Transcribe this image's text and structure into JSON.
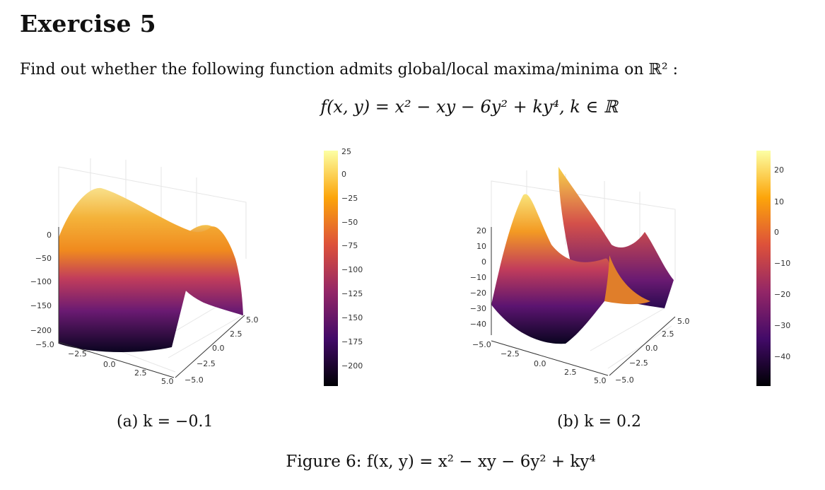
{
  "heading": "Exercise 5",
  "prompt": "Find out whether the following function admits global/local maxima/minima on ℝ² :",
  "formula": "f(x, y) = x² − xy − 6y² + ky⁴,    k ∈ ℝ",
  "figure_caption": "Figure 6:  f(x, y) = x² − xy − 6y² + ky⁴",
  "chart_data": [
    {
      "type": "surface",
      "caption": "(a) k = −0.1",
      "k": -0.1,
      "z_ticks": [
        "0",
        "−50",
        "−100",
        "−150",
        "−200"
      ],
      "x_ticks": [
        "−5.0",
        "−2.5",
        "0.0",
        "2.5",
        "5.0"
      ],
      "y_ticks": [
        "5.0",
        "2.5",
        "0.0",
        "−2.5",
        "−5.0"
      ],
      "colorbar_ticks": [
        "25",
        "0",
        "−25",
        "−50",
        "−75",
        "−100",
        "−125",
        "−150",
        "−175",
        "−200"
      ],
      "colormap": [
        "#000004",
        "#420a68",
        "#932667",
        "#dd513a",
        "#fca50a",
        "#fcffa4"
      ]
    },
    {
      "type": "surface",
      "caption": "(b) k = 0.2",
      "k": 0.2,
      "z_ticks": [
        "20",
        "10",
        "0",
        "−10",
        "−20",
        "−30",
        "−40"
      ],
      "x_ticks": [
        "−5.0",
        "−2.5",
        "0.0",
        "2.5",
        "5.0"
      ],
      "y_ticks": [
        "5.0",
        "2.5",
        "0.0",
        "−2.5",
        "−5.0"
      ],
      "colorbar_ticks": [
        "20",
        "10",
        "0",
        "−10",
        "−20",
        "−30",
        "−40"
      ],
      "colormap": [
        "#000004",
        "#420a68",
        "#932667",
        "#dd513a",
        "#fca50a",
        "#fcffa4"
      ]
    }
  ]
}
